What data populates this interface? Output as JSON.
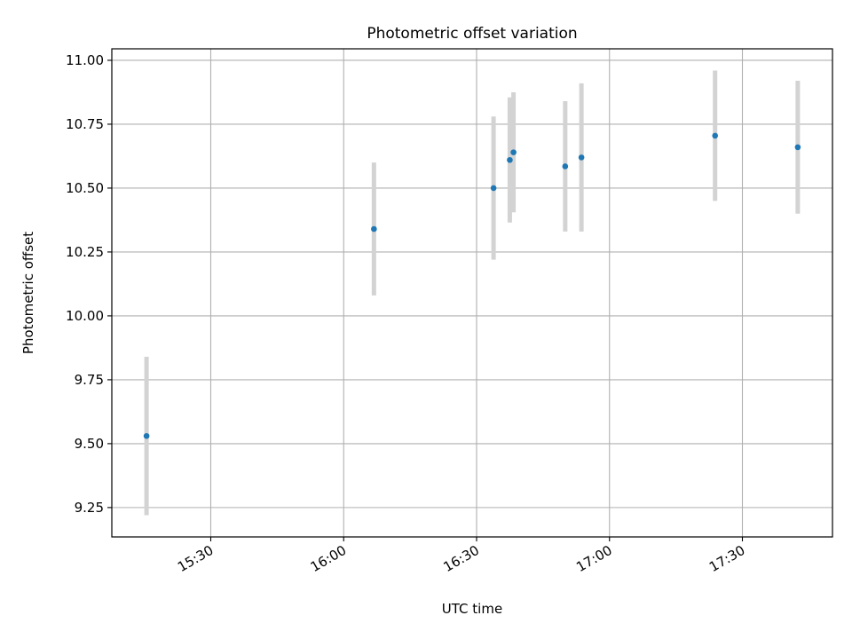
{
  "chart_data": {
    "type": "scatter",
    "title": "Photometric offset variation",
    "xlabel": "UTC time",
    "ylabel": "Photometric offset",
    "x_tick_labels": [
      "15:30",
      "16:00",
      "16:30",
      "17:00",
      "17:30"
    ],
    "y_tick_labels": [
      "9.25",
      "9.50",
      "9.75",
      "10.00",
      "10.25",
      "10.50",
      "10.75",
      "11.00"
    ],
    "xlim": [
      "15:07:40",
      "17:50:20"
    ],
    "ylim": [
      9.135,
      11.045
    ],
    "grid": true,
    "marker_color": "#1f77b4",
    "errorbar_color": "#d3d3d3",
    "points": [
      {
        "time": "15:15:30",
        "value": 9.53,
        "error": 0.31
      },
      {
        "time": "16:06:50",
        "value": 10.34,
        "error": 0.26
      },
      {
        "time": "16:33:50",
        "value": 10.5,
        "error": 0.28
      },
      {
        "time": "16:37:30",
        "value": 10.61,
        "error": 0.245
      },
      {
        "time": "16:38:20",
        "value": 10.64,
        "error": 0.235
      },
      {
        "time": "16:50:00",
        "value": 10.585,
        "error": 0.255
      },
      {
        "time": "16:53:40",
        "value": 10.62,
        "error": 0.29
      },
      {
        "time": "17:23:50",
        "value": 10.705,
        "error": 0.255
      },
      {
        "time": "17:42:30",
        "value": 10.66,
        "error": 0.26
      }
    ]
  }
}
